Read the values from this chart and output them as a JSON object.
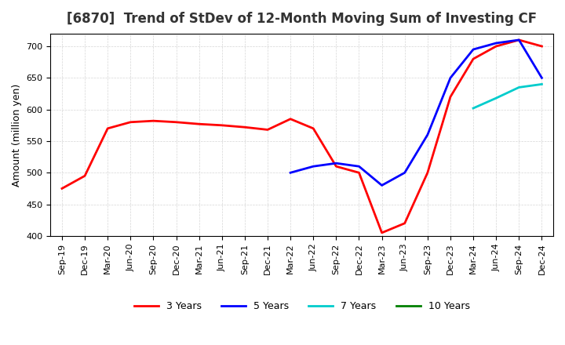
{
  "title": "[6870]  Trend of StDev of 12-Month Moving Sum of Investing CF",
  "ylabel": "Amount (million yen)",
  "ylim": [
    400,
    720
  ],
  "yticks": [
    400,
    450,
    500,
    550,
    600,
    650,
    700
  ],
  "background_color": "#ffffff",
  "grid_color": "#cccccc",
  "legend": [
    "3 Years",
    "5 Years",
    "7 Years",
    "10 Years"
  ],
  "legend_colors": [
    "#ff0000",
    "#0000ff",
    "#00cccc",
    "#008000"
  ],
  "x_labels": [
    "Sep-19",
    "Dec-19",
    "Mar-20",
    "Jun-20",
    "Sep-20",
    "Dec-20",
    "Mar-21",
    "Jun-21",
    "Sep-21",
    "Dec-21",
    "Mar-22",
    "Jun-22",
    "Sep-22",
    "Dec-22",
    "Mar-23",
    "Jun-23",
    "Sep-23",
    "Dec-23",
    "Mar-24",
    "Jun-24",
    "Sep-24",
    "Dec-24"
  ],
  "series_3y": [
    475,
    495,
    570,
    580,
    582,
    580,
    577,
    575,
    572,
    568,
    585,
    570,
    510,
    500,
    405,
    420,
    500,
    620,
    680,
    700,
    710,
    700
  ],
  "series_5y": [
    null,
    null,
    null,
    null,
    null,
    null,
    null,
    null,
    null,
    null,
    500,
    510,
    515,
    510,
    480,
    500,
    560,
    650,
    695,
    705,
    710,
    650
  ],
  "series_7y": [
    null,
    null,
    null,
    null,
    null,
    null,
    null,
    null,
    null,
    null,
    null,
    null,
    null,
    null,
    null,
    null,
    null,
    null,
    602,
    618,
    635,
    640
  ],
  "series_10y": [
    null,
    null,
    null,
    null,
    null,
    null,
    null,
    null,
    null,
    null,
    null,
    null,
    null,
    null,
    null,
    null,
    null,
    null,
    null,
    null,
    null,
    null
  ]
}
